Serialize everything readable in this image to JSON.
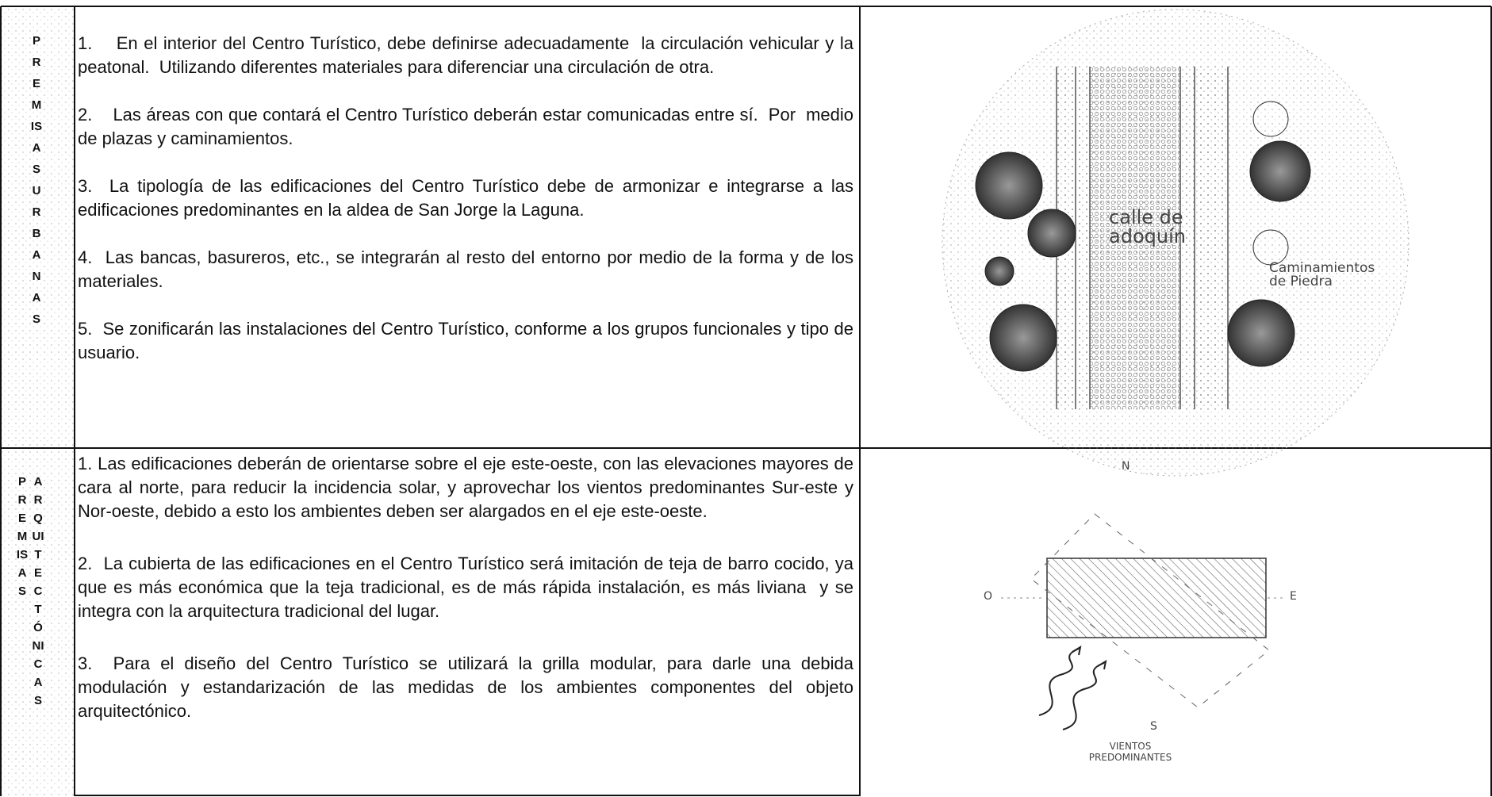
{
  "rows": [
    {
      "side": [
        "PREMISAS URBANAS"
      ],
      "items": [
        "1.    En el interior del Centro Turístico, debe definirse adecuadamente  la circulación vehicular y la peatonal.  Utilizando diferentes materiales para diferenciar una circulación de otra.",
        "2.    Las áreas con que contará el Centro Turístico deberán estar comunicadas entre sí.  Por  medio de plazas y caminamientos.",
        "3.  La tipología de las edificaciones del Centro Turístico debe de armonizar e integrarse a las edificaciones predominantes en la aldea de San Jorge la Laguna.",
        "4.  Las bancas, basureros, etc., se integrarán al resto del entorno por medio de la forma y de los materiales.",
        "5.  Se zonificarán las instalaciones del Centro Turístico, conforme a los grupos funcionales y tipo de usuario."
      ],
      "figure": {
        "street": "calle de adoquín",
        "path": "Caminamientos de Piedra"
      }
    },
    {
      "side": [
        "PREMISAS",
        "ARQUITECTÓNICAS"
      ],
      "items": [
        "1. Las edificaciones deberán de orientarse sobre el eje este-oeste, con las elevaciones mayores de cara al norte, para reducir la incidencia solar, y aprovechar los vientos predominantes Sur-este y Nor-oeste, debido a esto los ambientes deben ser alargados en el eje este-oeste.",
        "2.  La cubierta de las edificaciones en el Centro Turístico será imitación de teja de barro cocido, ya que es más económica que la teja tradicional, es de más rápida instalación, es más liviana  y se integra con la arquitectura tradicional del lugar.",
        "3.  Para el diseño del Centro Turístico se utilizará la grilla modular, para darle una debida modulación y estandarización de las medidas de los ambientes componentes del objeto arquitectónico."
      ],
      "figure": {
        "north": "N",
        "west": "O",
        "east": "E",
        "south": "S",
        "winds": "VIENTOS PREDOMINANTES"
      }
    }
  ]
}
